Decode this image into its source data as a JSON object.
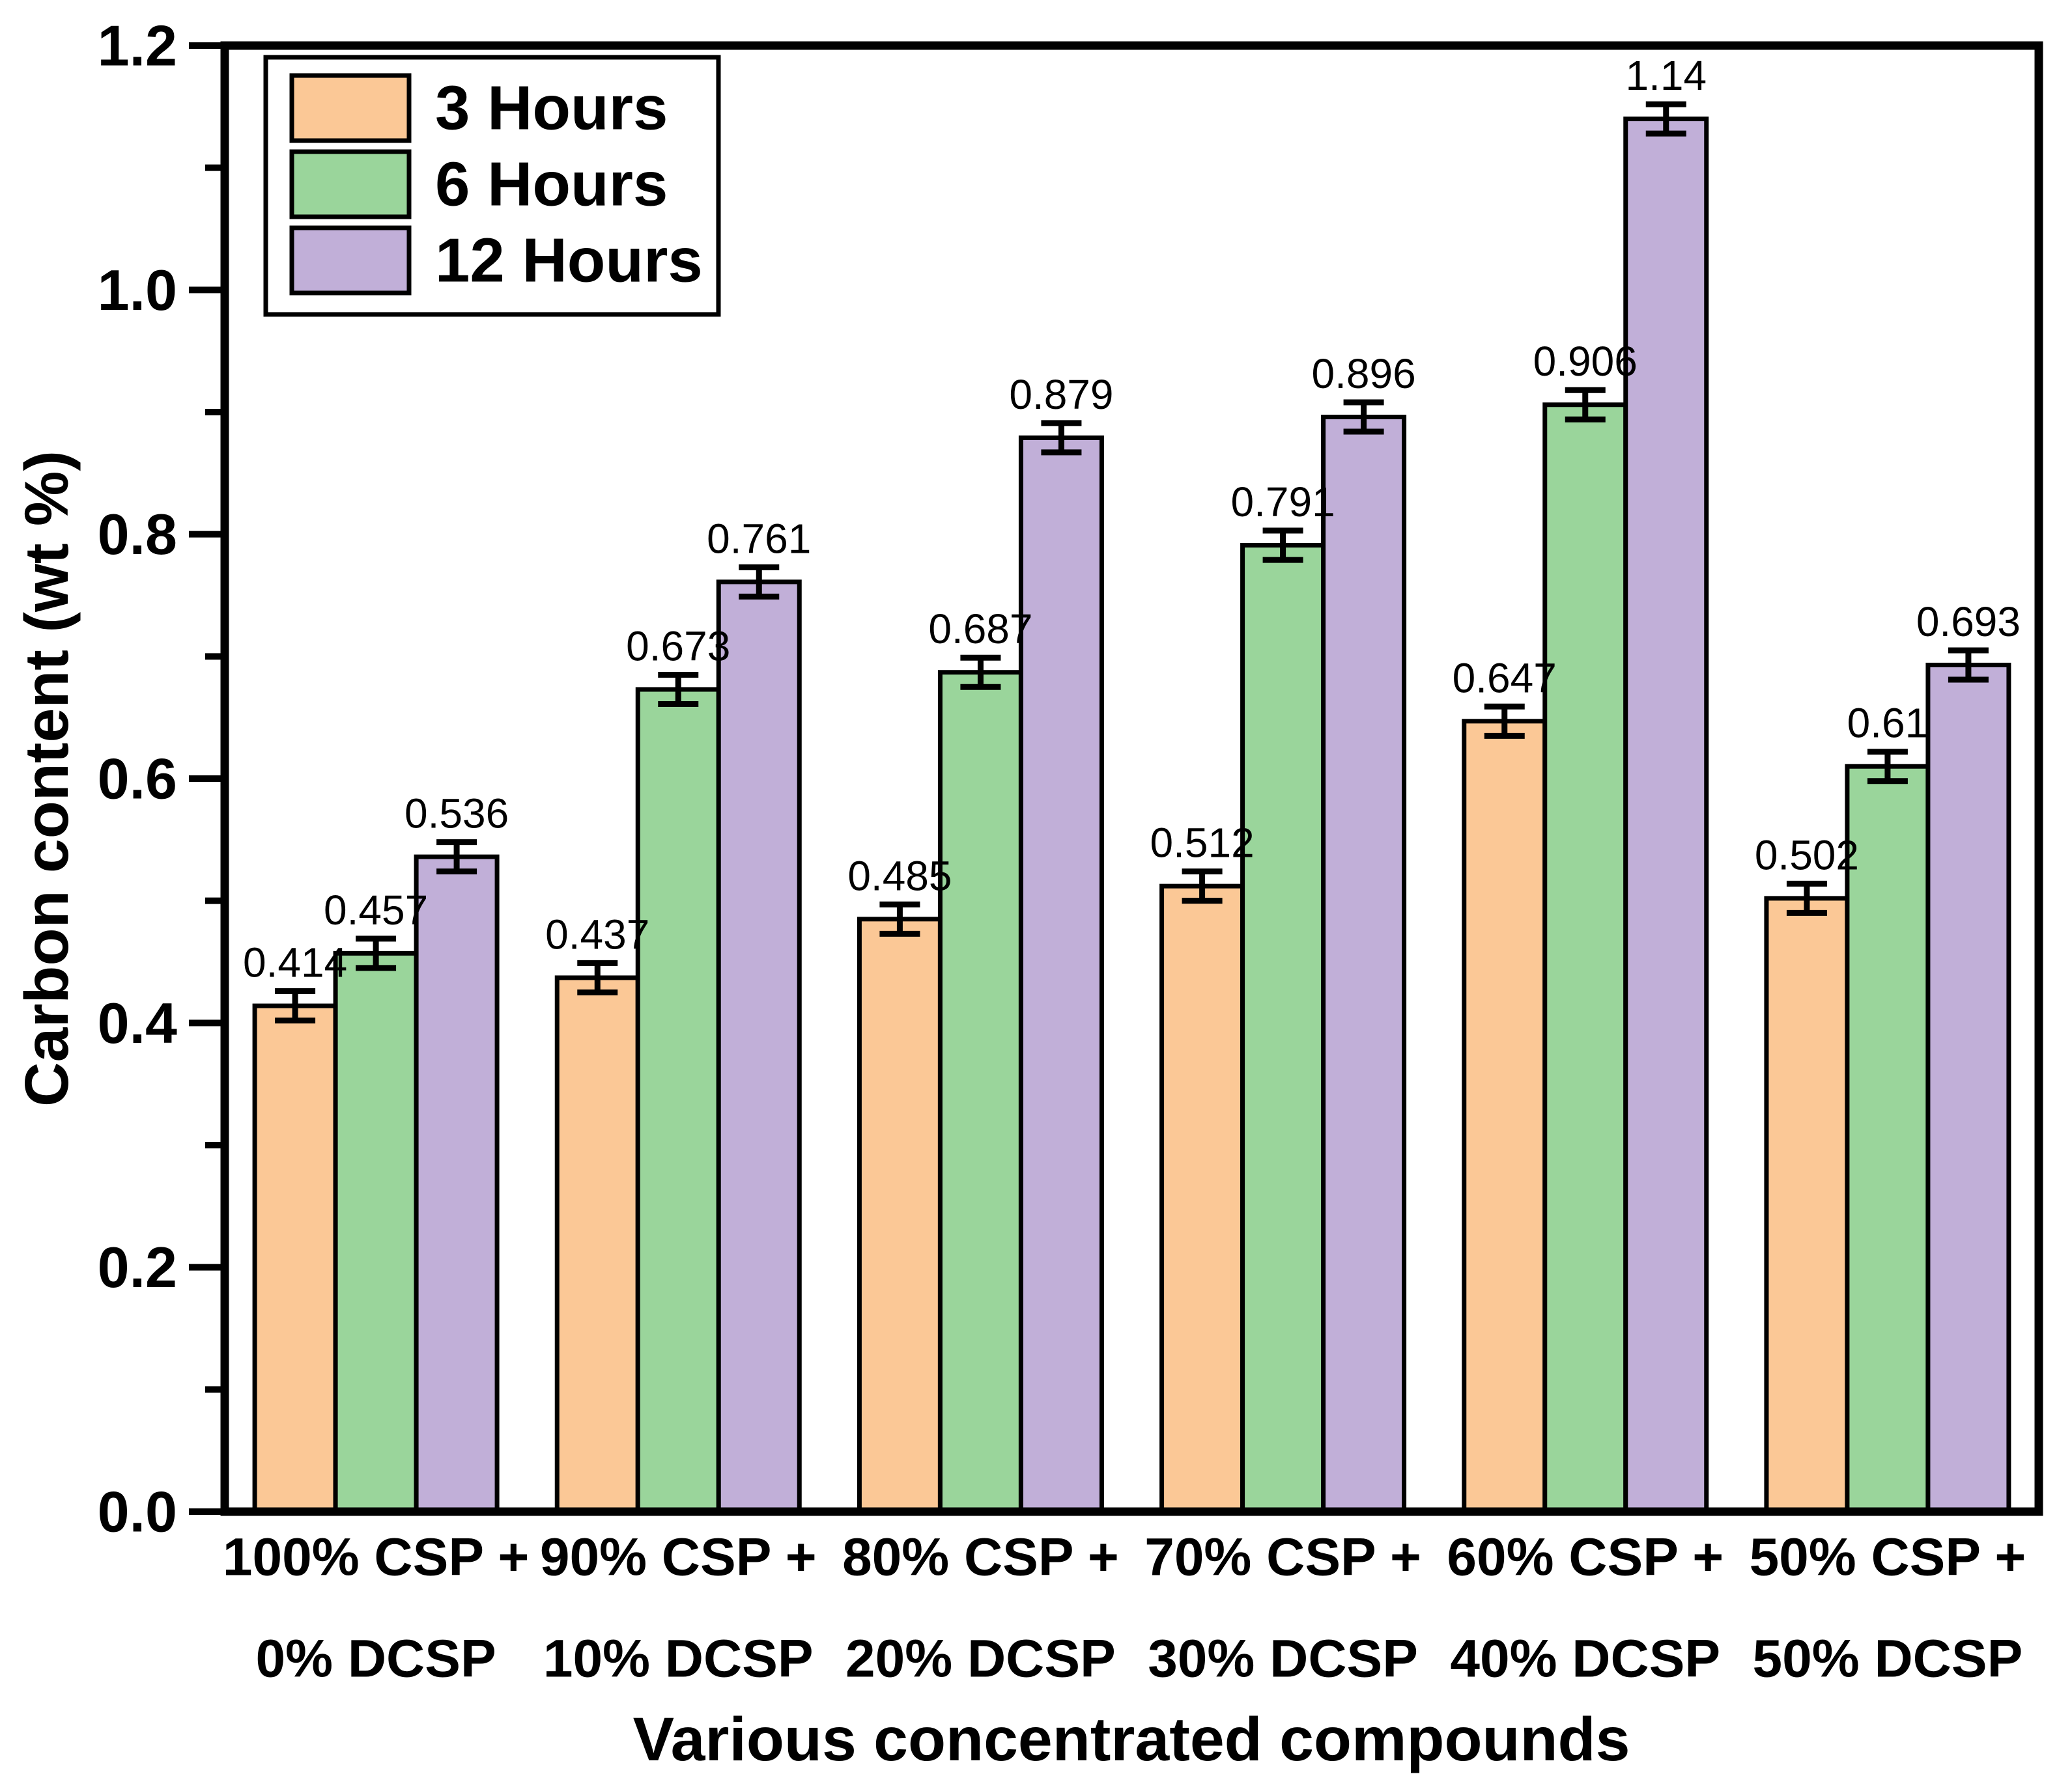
{
  "figure": {
    "background": "#ffffff",
    "text_color": "#000000"
  },
  "chart_data": {
    "type": "bar",
    "title": "",
    "xlabel": "Various concentrated compounds",
    "ylabel": "Carbon content (wt %)",
    "ylim": [
      0.0,
      1.2
    ],
    "y_major_step": 0.2,
    "y_minor_step": 0.1,
    "y_tick_labels": [
      "0.0",
      "0.2",
      "0.4",
      "0.6",
      "0.8",
      "1.0",
      "1.2"
    ],
    "grid": false,
    "legend_position": "upper-left",
    "bar_outline_color": "#000000",
    "error_bar_color": "#000000",
    "categories": [
      {
        "line1": "100% CSP +",
        "line2": "0% DCSP"
      },
      {
        "line1": "90% CSP +",
        "line2": "10% DCSP"
      },
      {
        "line1": "80% CSP +",
        "line2": "20% DCSP"
      },
      {
        "line1": "70% CSP +",
        "line2": "30% DCSP"
      },
      {
        "line1": "60% CSP +",
        "line2": "40% DCSP"
      },
      {
        "line1": "50% CSP +",
        "line2": "50% DCSP"
      }
    ],
    "series": [
      {
        "name": "3 Hours",
        "color": "#FBC896",
        "values": [
          0.414,
          0.437,
          0.485,
          0.512,
          0.647,
          0.502
        ],
        "value_labels": [
          "0.414",
          "0.437",
          "0.485",
          "0.512",
          "0.647",
          "0.502"
        ],
        "errors": [
          0.012,
          0.012,
          0.012,
          0.012,
          0.012,
          0.012
        ]
      },
      {
        "name": "6 Hours",
        "color": "#9AD59B",
        "values": [
          0.457,
          0.673,
          0.687,
          0.791,
          0.906,
          0.61
        ],
        "value_labels": [
          "0.457",
          "0.673",
          "0.687",
          "0.791",
          "0.906",
          "0.61"
        ],
        "errors": [
          0.012,
          0.012,
          0.012,
          0.012,
          0.012,
          0.012
        ]
      },
      {
        "name": "12 Hours",
        "color": "#C1AFD8",
        "values": [
          0.536,
          0.761,
          0.879,
          0.896,
          1.14,
          0.693
        ],
        "value_labels": [
          "0.536",
          "0.761",
          "0.879",
          "0.896",
          "1.14",
          "0.693"
        ],
        "errors": [
          0.012,
          0.012,
          0.012,
          0.012,
          0.012,
          0.012
        ]
      }
    ]
  }
}
